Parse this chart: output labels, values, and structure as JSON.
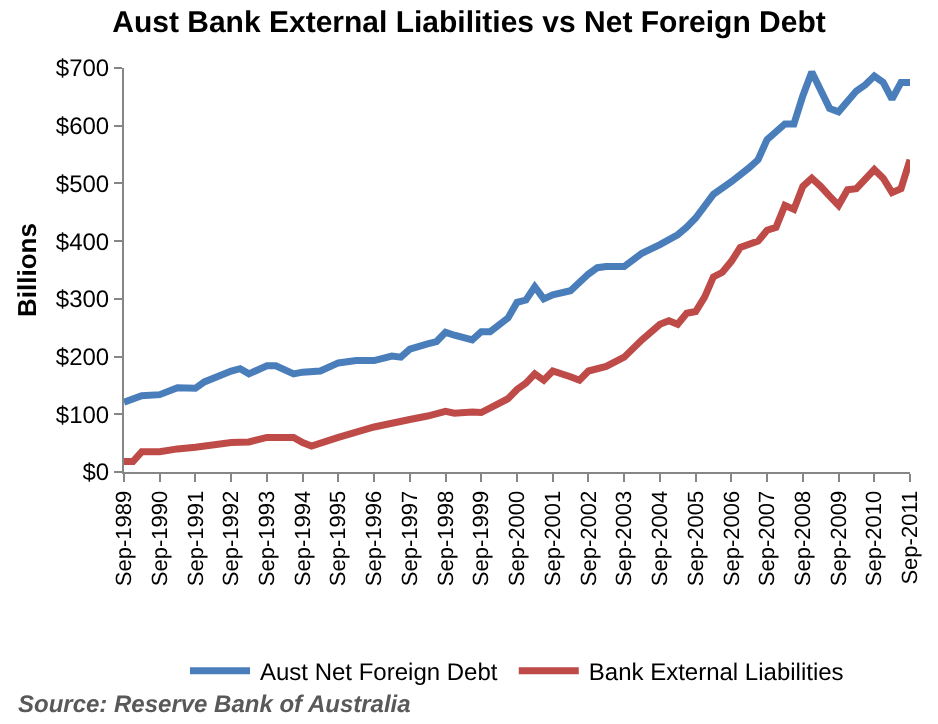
{
  "chart_data": {
    "type": "line",
    "title": "Aust Bank External Liabilities vs Net Foreign Debt",
    "ylabel": "Billions",
    "annotations": [
      "Source: Reserve Bank of Australia"
    ],
    "xlim": [
      "1989-09",
      "2011-09"
    ],
    "xticks": [
      {
        "value": "1989-09",
        "label": "Sep-1989"
      },
      {
        "value": "1990-09",
        "label": "Sep-1990"
      },
      {
        "value": "1991-09",
        "label": "Sep-1991"
      },
      {
        "value": "1992-09",
        "label": "Sep-1992"
      },
      {
        "value": "1993-09",
        "label": "Sep-1993"
      },
      {
        "value": "1994-09",
        "label": "Sep-1994"
      },
      {
        "value": "1995-09",
        "label": "Sep-1995"
      },
      {
        "value": "1996-09",
        "label": "Sep-1996"
      },
      {
        "value": "1997-09",
        "label": "Sep-1997"
      },
      {
        "value": "1998-09",
        "label": "Sep-1998"
      },
      {
        "value": "1999-09",
        "label": "Sep-1999"
      },
      {
        "value": "2000-09",
        "label": "Sep-2000"
      },
      {
        "value": "2001-09",
        "label": "Sep-2001"
      },
      {
        "value": "2002-09",
        "label": "Sep-2002"
      },
      {
        "value": "2003-09",
        "label": "Sep-2003"
      },
      {
        "value": "2004-09",
        "label": "Sep-2004"
      },
      {
        "value": "2005-09",
        "label": "Sep-2005"
      },
      {
        "value": "2006-09",
        "label": "Sep-2006"
      },
      {
        "value": "2007-09",
        "label": "Sep-2007"
      },
      {
        "value": "2008-09",
        "label": "Sep-2008"
      },
      {
        "value": "2009-09",
        "label": "Sep-2009"
      },
      {
        "value": "2010-09",
        "label": "Sep-2010"
      },
      {
        "value": "2011-09",
        "label": "Sep-2011"
      }
    ],
    "ylim": [
      0,
      700
    ],
    "yticks": [
      {
        "value": 0,
        "label": "$0"
      },
      {
        "value": 100,
        "label": "$100"
      },
      {
        "value": 200,
        "label": "$200"
      },
      {
        "value": 300,
        "label": "$300"
      },
      {
        "value": 400,
        "label": "$400"
      },
      {
        "value": 500,
        "label": "$500"
      },
      {
        "value": 600,
        "label": "$600"
      },
      {
        "value": 700,
        "label": "$700"
      }
    ],
    "grid": false,
    "legend": "bottom",
    "series": [
      {
        "name": "Aust Net Foreign Debt",
        "color": "#4a7ebb",
        "x": [
          "1989-09",
          "1990-03",
          "1990-09",
          "1991-03",
          "1991-09",
          "1991-12",
          "1992-09",
          "1992-12",
          "1993-03",
          "1993-09",
          "1993-12",
          "1994-06",
          "1994-09",
          "1995-03",
          "1995-09",
          "1996-03",
          "1996-09",
          "1997-03",
          "1997-06",
          "1997-09",
          "1998-03",
          "1998-06",
          "1998-09",
          "1998-12",
          "1999-06",
          "1999-09",
          "1999-12",
          "2000-06",
          "2000-09",
          "2000-12",
          "2001-03",
          "2001-06",
          "2001-09",
          "2002-03",
          "2002-09",
          "2002-12",
          "2003-03",
          "2003-09",
          "2004-03",
          "2004-09",
          "2005-03",
          "2005-06",
          "2005-09",
          "2006-03",
          "2006-09",
          "2007-03",
          "2007-06",
          "2007-09",
          "2008-03",
          "2008-06",
          "2008-09",
          "2008-12",
          "2009-03",
          "2009-06",
          "2009-09",
          "2010-03",
          "2010-06",
          "2010-09",
          "2010-12",
          "2011-03",
          "2011-06",
          "2011-09"
        ],
        "values": [
          121,
          132,
          134,
          146,
          145,
          156,
          175,
          179,
          170,
          184,
          184,
          170,
          173,
          175,
          189,
          193,
          193,
          201,
          199,
          213,
          222,
          226,
          242,
          237,
          229,
          243,
          243,
          267,
          294,
          298,
          321,
          300,
          307,
          314,
          343,
          354,
          356,
          356,
          379,
          394,
          411,
          424,
          440,
          481,
          503,
          527,
          541,
          576,
          603,
          603,
          652,
          693,
          662,
          630,
          624,
          660,
          671,
          686,
          675,
          646,
          675,
          675
        ]
      },
      {
        "name": "Bank External Liabilities",
        "color": "#be4b48",
        "x": [
          "1989-09",
          "1989-12",
          "1990-03",
          "1990-09",
          "1991-03",
          "1991-09",
          "1992-09",
          "1993-03",
          "1993-09",
          "1994-06",
          "1994-09",
          "1994-12",
          "1995-09",
          "1996-09",
          "1997-09",
          "1998-03",
          "1998-09",
          "1998-12",
          "1999-06",
          "1999-09",
          "2000-03",
          "2000-06",
          "2000-09",
          "2000-12",
          "2001-03",
          "2001-06",
          "2001-09",
          "2002-03",
          "2002-06",
          "2002-09",
          "2003-03",
          "2003-09",
          "2004-03",
          "2004-09",
          "2004-12",
          "2005-03",
          "2005-06",
          "2005-09",
          "2005-12",
          "2006-03",
          "2006-06",
          "2006-09",
          "2006-12",
          "2007-06",
          "2007-09",
          "2007-12",
          "2008-03",
          "2008-06",
          "2008-09",
          "2008-12",
          "2009-03",
          "2009-06",
          "2009-09",
          "2009-12",
          "2010-03",
          "2010-09",
          "2010-12",
          "2011-03",
          "2011-06",
          "2011-09"
        ],
        "values": [
          18,
          18,
          35,
          35,
          40,
          43,
          51,
          52,
          60,
          60,
          51,
          45,
          60,
          78,
          91,
          97,
          105,
          102,
          104,
          103,
          119,
          127,
          143,
          154,
          170,
          159,
          175,
          165,
          159,
          175,
          183,
          199,
          229,
          256,
          262,
          256,
          275,
          278,
          303,
          338,
          346,
          365,
          389,
          400,
          419,
          424,
          462,
          455,
          495,
          509,
          495,
          478,
          462,
          489,
          491,
          524,
          509,
          484,
          491,
          541
        ]
      }
    ]
  }
}
